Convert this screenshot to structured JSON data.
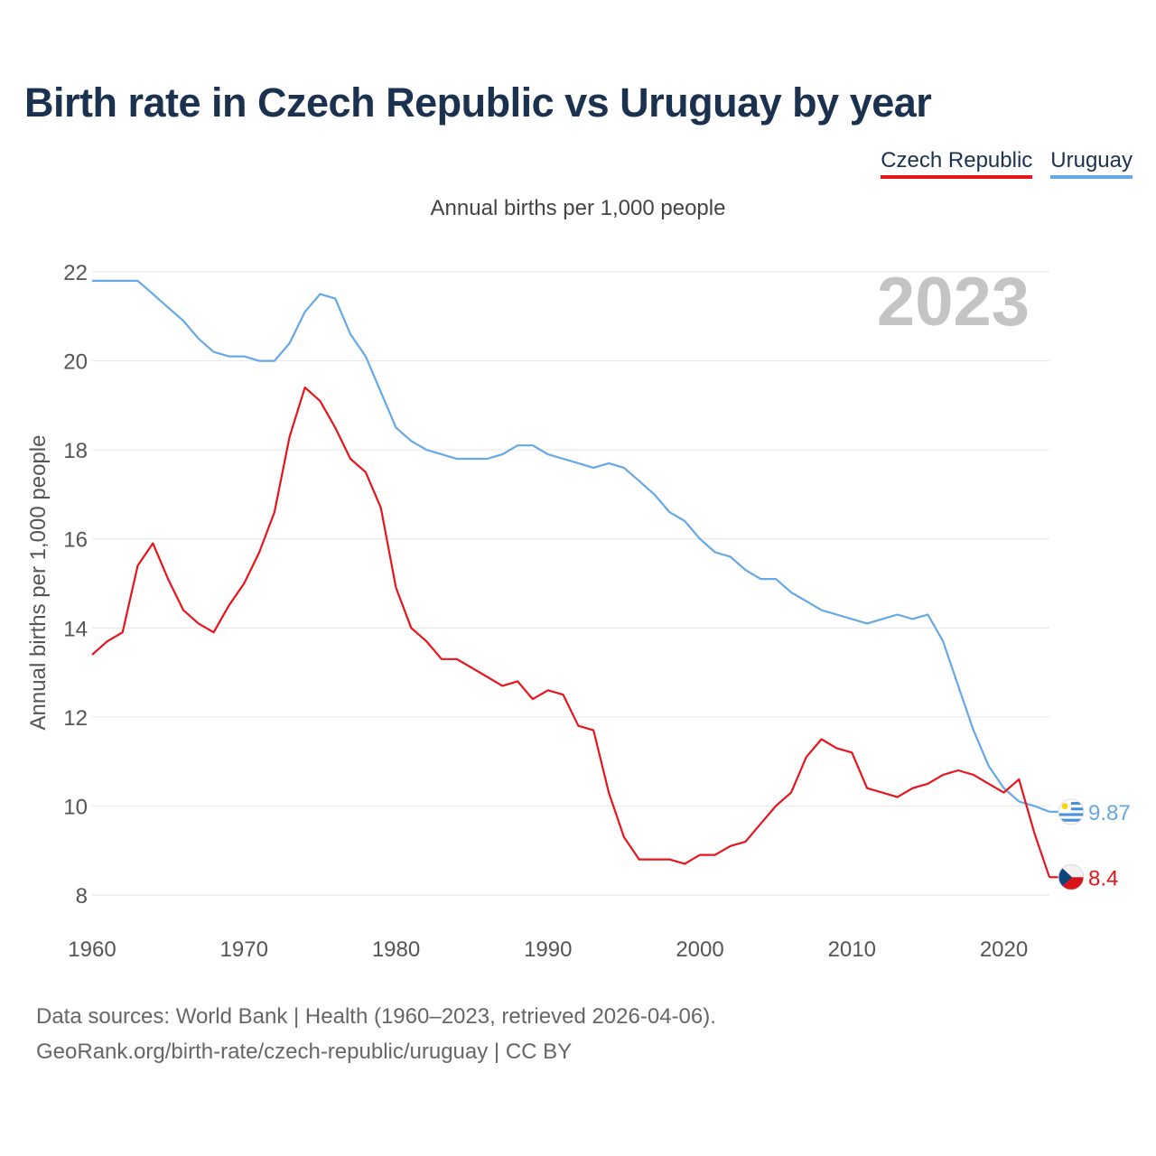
{
  "title": "Birth rate in Czech Republic vs Uruguay by year",
  "subtitle": "Annual births per 1,000 people",
  "year_watermark": "2023",
  "legend": {
    "czech": "Czech Republic",
    "uruguay": "Uruguay"
  },
  "footer": {
    "line1": "Data sources: World Bank | Health (1960–2023, retrieved 2026-04-06).",
    "line2": "GeoRank.org/birth-rate/czech-republic/uruguay | CC BY"
  },
  "colors": {
    "czech": "#e8141b",
    "uruguay": "#64a8e6",
    "title": "#1a3150",
    "watermark": "#c4c4c4"
  },
  "chart_data": {
    "type": "line",
    "title": "Birth rate in Czech Republic vs Uruguay by year",
    "subtitle": "Annual births per 1,000 people",
    "xlabel": "",
    "ylabel": "Annual births per 1,000 people",
    "xlim": [
      1960,
      2023
    ],
    "ylim": [
      8,
      22
    ],
    "xticks": [
      1960,
      1970,
      1980,
      1990,
      2000,
      2010,
      2020
    ],
    "yticks": [
      8,
      10,
      12,
      14,
      16,
      18,
      20,
      22
    ],
    "grid": true,
    "legend_position": "top-right",
    "x": [
      1960,
      1961,
      1962,
      1963,
      1964,
      1965,
      1966,
      1967,
      1968,
      1969,
      1970,
      1971,
      1972,
      1973,
      1974,
      1975,
      1976,
      1977,
      1978,
      1979,
      1980,
      1981,
      1982,
      1983,
      1984,
      1985,
      1986,
      1987,
      1988,
      1989,
      1990,
      1991,
      1992,
      1993,
      1994,
      1995,
      1996,
      1997,
      1998,
      1999,
      2000,
      2001,
      2002,
      2003,
      2004,
      2005,
      2006,
      2007,
      2008,
      2009,
      2010,
      2011,
      2012,
      2013,
      2014,
      2015,
      2016,
      2017,
      2018,
      2019,
      2020,
      2021,
      2022,
      2023
    ],
    "series": [
      {
        "name": "Czech Republic",
        "key": "czech",
        "end_label": "8.4",
        "values": [
          13.4,
          13.7,
          13.9,
          15.4,
          15.9,
          15.1,
          14.4,
          14.1,
          13.9,
          14.5,
          15.0,
          15.7,
          16.6,
          18.3,
          19.4,
          19.1,
          18.5,
          17.8,
          17.5,
          16.7,
          14.9,
          14.0,
          13.7,
          13.3,
          13.3,
          13.1,
          12.9,
          12.7,
          12.8,
          12.4,
          12.6,
          12.5,
          11.8,
          11.7,
          10.3,
          9.3,
          8.8,
          8.8,
          8.8,
          8.7,
          8.9,
          8.9,
          9.1,
          9.2,
          9.6,
          10.0,
          10.3,
          11.1,
          11.5,
          11.3,
          11.2,
          10.4,
          10.3,
          10.2,
          10.4,
          10.5,
          10.7,
          10.8,
          10.7,
          10.5,
          10.3,
          10.6,
          9.4,
          8.4
        ]
      },
      {
        "name": "Uruguay",
        "key": "uruguay",
        "end_label": "9.87",
        "values": [
          21.8,
          21.8,
          21.8,
          21.8,
          21.5,
          21.2,
          20.9,
          20.5,
          20.2,
          20.1,
          20.1,
          20.0,
          20.0,
          20.4,
          21.1,
          21.5,
          21.4,
          20.6,
          20.1,
          19.3,
          18.5,
          18.2,
          18.0,
          17.9,
          17.8,
          17.8,
          17.8,
          17.9,
          18.1,
          18.1,
          17.9,
          17.8,
          17.7,
          17.6,
          17.7,
          17.6,
          17.3,
          17.0,
          16.6,
          16.4,
          16.0,
          15.7,
          15.6,
          15.3,
          15.1,
          15.1,
          14.8,
          14.6,
          14.4,
          14.3,
          14.2,
          14.1,
          14.2,
          14.3,
          14.2,
          14.3,
          13.7,
          12.7,
          11.7,
          10.9,
          10.4,
          10.1,
          10.0,
          9.87
        ]
      }
    ]
  }
}
